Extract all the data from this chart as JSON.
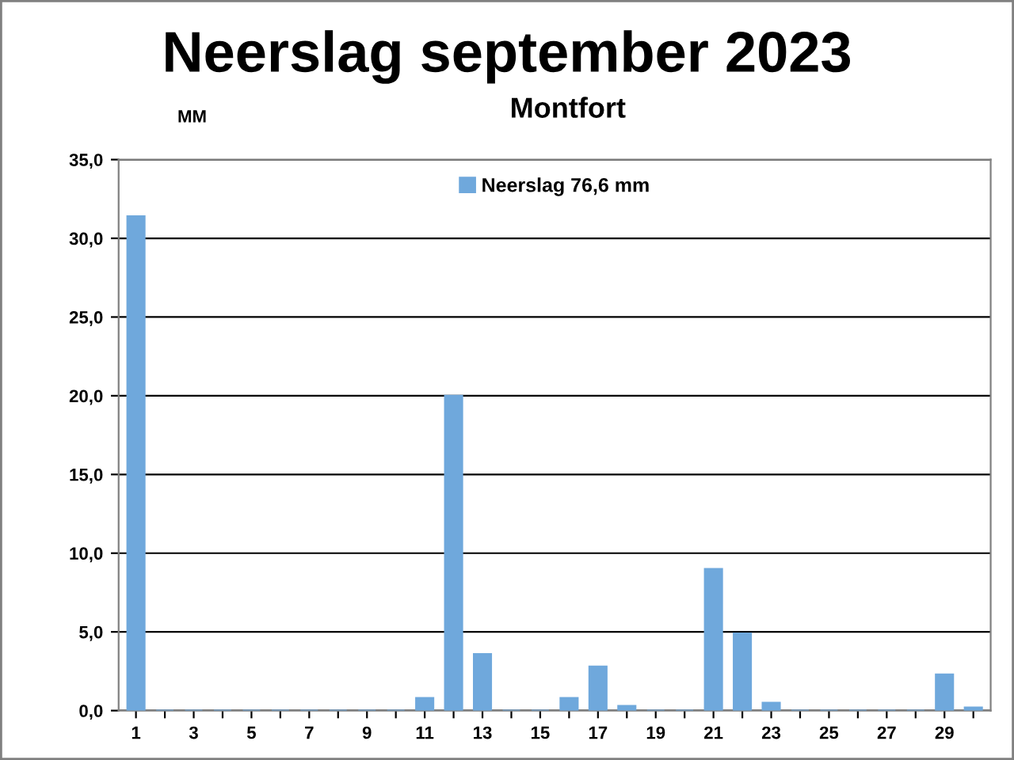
{
  "chart_data": {
    "type": "bar",
    "title": "Neerslag september 2023",
    "subtitle": "Montfort",
    "ylabel": "MM",
    "categories": [
      "1",
      null,
      "3",
      null,
      "5",
      null,
      "7",
      null,
      "9",
      null,
      "11",
      null,
      "13",
      null,
      "15",
      null,
      "17",
      null,
      "19",
      null,
      "21",
      null,
      "23",
      null,
      "25",
      null,
      "27",
      null,
      "29",
      null
    ],
    "series": [
      {
        "name": "Neerslag 76,6 mm",
        "color": "#6fa8dc",
        "values": [
          31.4,
          0,
          0,
          0,
          0,
          0,
          0,
          0,
          0,
          0,
          0.8,
          20.0,
          3.6,
          0,
          0,
          0.8,
          2.8,
          0.3,
          0,
          0,
          9.0,
          4.9,
          0.5,
          0,
          0,
          0,
          0,
          0,
          2.3,
          0.2
        ]
      }
    ],
    "ylim": [
      0,
      35
    ],
    "yticks": [
      {
        "value": 0,
        "label": "0,0"
      },
      {
        "value": 5,
        "label": "5,0"
      },
      {
        "value": 10,
        "label": "10,0"
      },
      {
        "value": 15,
        "label": "15,0"
      },
      {
        "value": 20,
        "label": "20,0"
      },
      {
        "value": 25,
        "label": "25,0"
      },
      {
        "value": 30,
        "label": "30,0"
      },
      {
        "value": 35,
        "label": "35,0"
      }
    ],
    "grid": "y",
    "legend": "top"
  }
}
